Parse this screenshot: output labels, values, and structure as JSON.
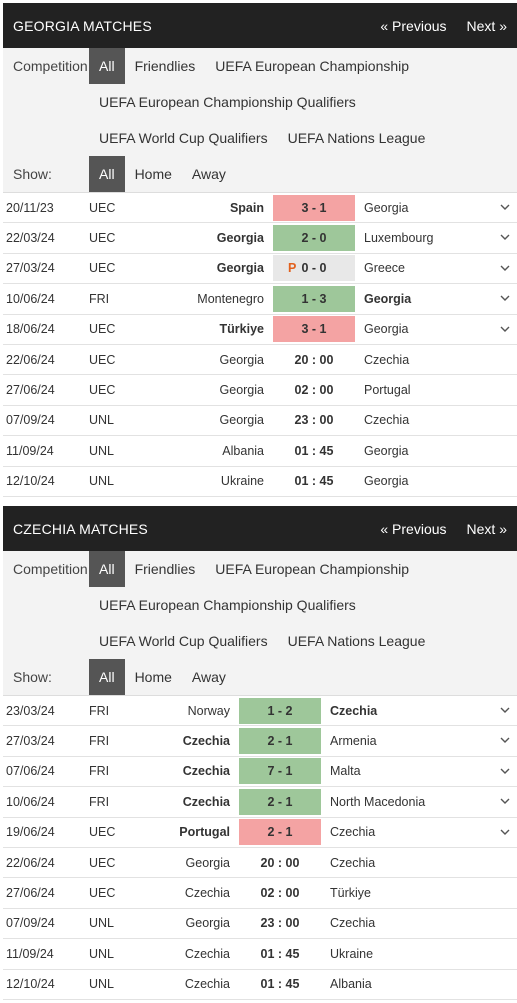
{
  "panels": [
    {
      "title": "GEORGIA MATCHES",
      "prev": "« Previous",
      "next": "Next »",
      "competition_label": "Competition:",
      "show_label": "Show:",
      "competitions": [
        "All",
        "Friendlies",
        "UEFA European Championship",
        "UEFA European Championship Qualifiers",
        "UEFA World Cup Qualifiers",
        "UEFA Nations League"
      ],
      "show": [
        "All",
        "Home",
        "Away"
      ],
      "matches": [
        {
          "date": "20/11/23",
          "comp": "UEC",
          "home": "Spain",
          "score": "3 - 1",
          "away": "Georgia",
          "result": "loss",
          "bold": "home",
          "chevron": true
        },
        {
          "date": "22/03/24",
          "comp": "UEC",
          "home": "Georgia",
          "score": "2 - 0",
          "away": "Luxembourg",
          "result": "win",
          "bold": "home",
          "chevron": true
        },
        {
          "date": "27/03/24",
          "comp": "UEC",
          "home": "Georgia",
          "score": "0 - 0",
          "pen": "P",
          "away": "Greece",
          "result": "draw",
          "bold": "home",
          "chevron": true
        },
        {
          "date": "10/06/24",
          "comp": "FRI",
          "home": "Montenegro",
          "score": "1 - 3",
          "away": "Georgia",
          "result": "win",
          "bold": "away",
          "chevron": true
        },
        {
          "date": "18/06/24",
          "comp": "UEC",
          "home": "Türkiye",
          "score": "3 - 1",
          "away": "Georgia",
          "result": "loss",
          "bold": "home",
          "chevron": true
        },
        {
          "date": "22/06/24",
          "comp": "UEC",
          "home": "Georgia",
          "score": "20 : 00",
          "away": "Czechia",
          "result": "",
          "bold": "",
          "chevron": false
        },
        {
          "date": "27/06/24",
          "comp": "UEC",
          "home": "Georgia",
          "score": "02 : 00",
          "away": "Portugal",
          "result": "",
          "bold": "",
          "chevron": false
        },
        {
          "date": "07/09/24",
          "comp": "UNL",
          "home": "Georgia",
          "score": "23 : 00",
          "away": "Czechia",
          "result": "",
          "bold": "",
          "chevron": false
        },
        {
          "date": "11/09/24",
          "comp": "UNL",
          "home": "Albania",
          "score": "01 : 45",
          "away": "Georgia",
          "result": "",
          "bold": "",
          "chevron": false
        },
        {
          "date": "12/10/24",
          "comp": "UNL",
          "home": "Ukraine",
          "score": "01 : 45",
          "away": "Georgia",
          "result": "",
          "bold": "",
          "chevron": false
        }
      ]
    },
    {
      "title": "CZECHIA MATCHES",
      "prev": "« Previous",
      "next": "Next »",
      "competition_label": "Competition:",
      "show_label": "Show:",
      "competitions": [
        "All",
        "Friendlies",
        "UEFA European Championship",
        "UEFA European Championship Qualifiers",
        "UEFA World Cup Qualifiers",
        "UEFA Nations League"
      ],
      "show": [
        "All",
        "Home",
        "Away"
      ],
      "matches": [
        {
          "date": "23/03/24",
          "comp": "FRI",
          "home": "Norway",
          "score": "1 - 2",
          "away": "Czechia",
          "result": "win",
          "bold": "away",
          "chevron": true
        },
        {
          "date": "27/03/24",
          "comp": "FRI",
          "home": "Czechia",
          "score": "2 - 1",
          "away": "Armenia",
          "result": "win",
          "bold": "home",
          "chevron": true
        },
        {
          "date": "07/06/24",
          "comp": "FRI",
          "home": "Czechia",
          "score": "7 - 1",
          "away": "Malta",
          "result": "win",
          "bold": "home",
          "chevron": true
        },
        {
          "date": "10/06/24",
          "comp": "FRI",
          "home": "Czechia",
          "score": "2 - 1",
          "away": "North Macedonia",
          "result": "win",
          "bold": "home",
          "chevron": true
        },
        {
          "date": "19/06/24",
          "comp": "UEC",
          "home": "Portugal",
          "score": "2 - 1",
          "away": "Czechia",
          "result": "loss",
          "bold": "home",
          "chevron": true
        },
        {
          "date": "22/06/24",
          "comp": "UEC",
          "home": "Georgia",
          "score": "20 : 00",
          "away": "Czechia",
          "result": "",
          "bold": "",
          "chevron": false
        },
        {
          "date": "27/06/24",
          "comp": "UEC",
          "home": "Czechia",
          "score": "02 : 00",
          "away": "Türkiye",
          "result": "",
          "bold": "",
          "chevron": false
        },
        {
          "date": "07/09/24",
          "comp": "UNL",
          "home": "Georgia",
          "score": "23 : 00",
          "away": "Czechia",
          "result": "",
          "bold": "",
          "chevron": false
        },
        {
          "date": "11/09/24",
          "comp": "UNL",
          "home": "Czechia",
          "score": "01 : 45",
          "away": "Ukraine",
          "result": "",
          "bold": "",
          "chevron": false
        },
        {
          "date": "12/10/24",
          "comp": "UNL",
          "home": "Czechia",
          "score": "01 : 45",
          "away": "Albania",
          "result": "",
          "bold": "",
          "chevron": false
        }
      ]
    }
  ]
}
